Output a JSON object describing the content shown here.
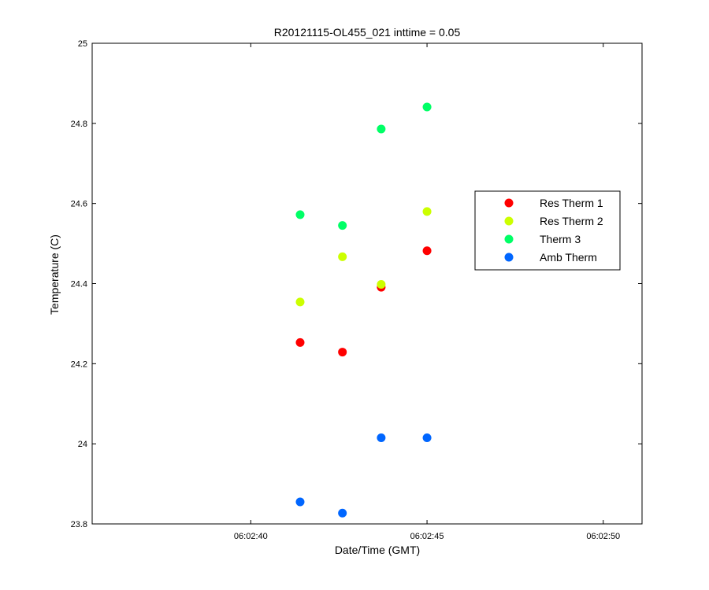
{
  "chart_data": {
    "type": "scatter",
    "title": "R20121115-OL455_021 inttime = 0.05",
    "xlabel": "Date/Time (GMT)",
    "ylabel": "Temperature (C)",
    "x_unit": "time (GMT)",
    "xlim": [
      "06:02:35.5",
      "06:02:51.1"
    ],
    "ylim": [
      23.8,
      25
    ],
    "x_ticks": [
      "06:02:40",
      "06:02:45",
      "06:02:50"
    ],
    "y_ticks": [
      "23.8",
      "24",
      "24.2",
      "24.4",
      "24.6",
      "24.8",
      "25"
    ],
    "grid": false,
    "legend_position": "right",
    "series": [
      {
        "name": "Res Therm 1",
        "color": "#ff0000",
        "points": [
          {
            "x": "06:02:41.4",
            "y": 24.253
          },
          {
            "x": "06:02:42.6",
            "y": 24.229
          },
          {
            "x": "06:02:43.7",
            "y": 24.391
          },
          {
            "x": "06:02:45.0",
            "y": 24.482
          }
        ]
      },
      {
        "name": "Res Therm 2",
        "color": "#ccff00",
        "points": [
          {
            "x": "06:02:41.4",
            "y": 24.354
          },
          {
            "x": "06:02:42.6",
            "y": 24.467
          },
          {
            "x": "06:02:43.7",
            "y": 24.398
          },
          {
            "x": "06:02:45.0",
            "y": 24.58
          }
        ]
      },
      {
        "name": "Therm 3",
        "color": "#00ff66",
        "points": [
          {
            "x": "06:02:41.4",
            "y": 24.572
          },
          {
            "x": "06:02:42.6",
            "y": 24.545
          },
          {
            "x": "06:02:43.7",
            "y": 24.786
          },
          {
            "x": "06:02:45.0",
            "y": 24.841
          }
        ]
      },
      {
        "name": "Amb Therm",
        "color": "#0066ff",
        "points": [
          {
            "x": "06:02:41.4",
            "y": 23.855
          },
          {
            "x": "06:02:42.6",
            "y": 23.827
          },
          {
            "x": "06:02:43.7",
            "y": 24.015
          },
          {
            "x": "06:02:45.0",
            "y": 24.015
          }
        ]
      }
    ]
  }
}
